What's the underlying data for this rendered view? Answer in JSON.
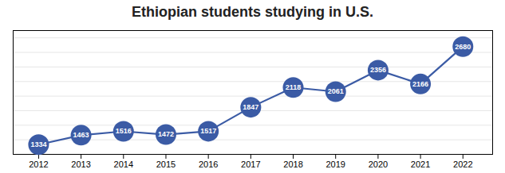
{
  "chart_data": {
    "type": "line",
    "title": "Ethiopian students studying in U.S.",
    "x": [
      2012,
      2013,
      2014,
      2015,
      2016,
      2017,
      2018,
      2019,
      2020,
      2021,
      2022
    ],
    "values": [
      1334,
      1463,
      1516,
      1472,
      1517,
      1847,
      2118,
      2061,
      2356,
      2166,
      2680
    ],
    "color": "#3B5BA5",
    "marker": "circle",
    "data_labels": true,
    "xlim": [
      2011.4,
      2022.7
    ],
    "xticks": [
      2012,
      2013,
      2014,
      2015,
      2016,
      2017,
      2018,
      2019,
      2020,
      2021,
      2022
    ],
    "ylim": [
      1200,
      2900
    ],
    "yticks": [
      1200,
      1400,
      1600,
      1800,
      2000,
      2200,
      2400,
      2600,
      2800
    ],
    "grid": true,
    "tick_labels": "x"
  }
}
